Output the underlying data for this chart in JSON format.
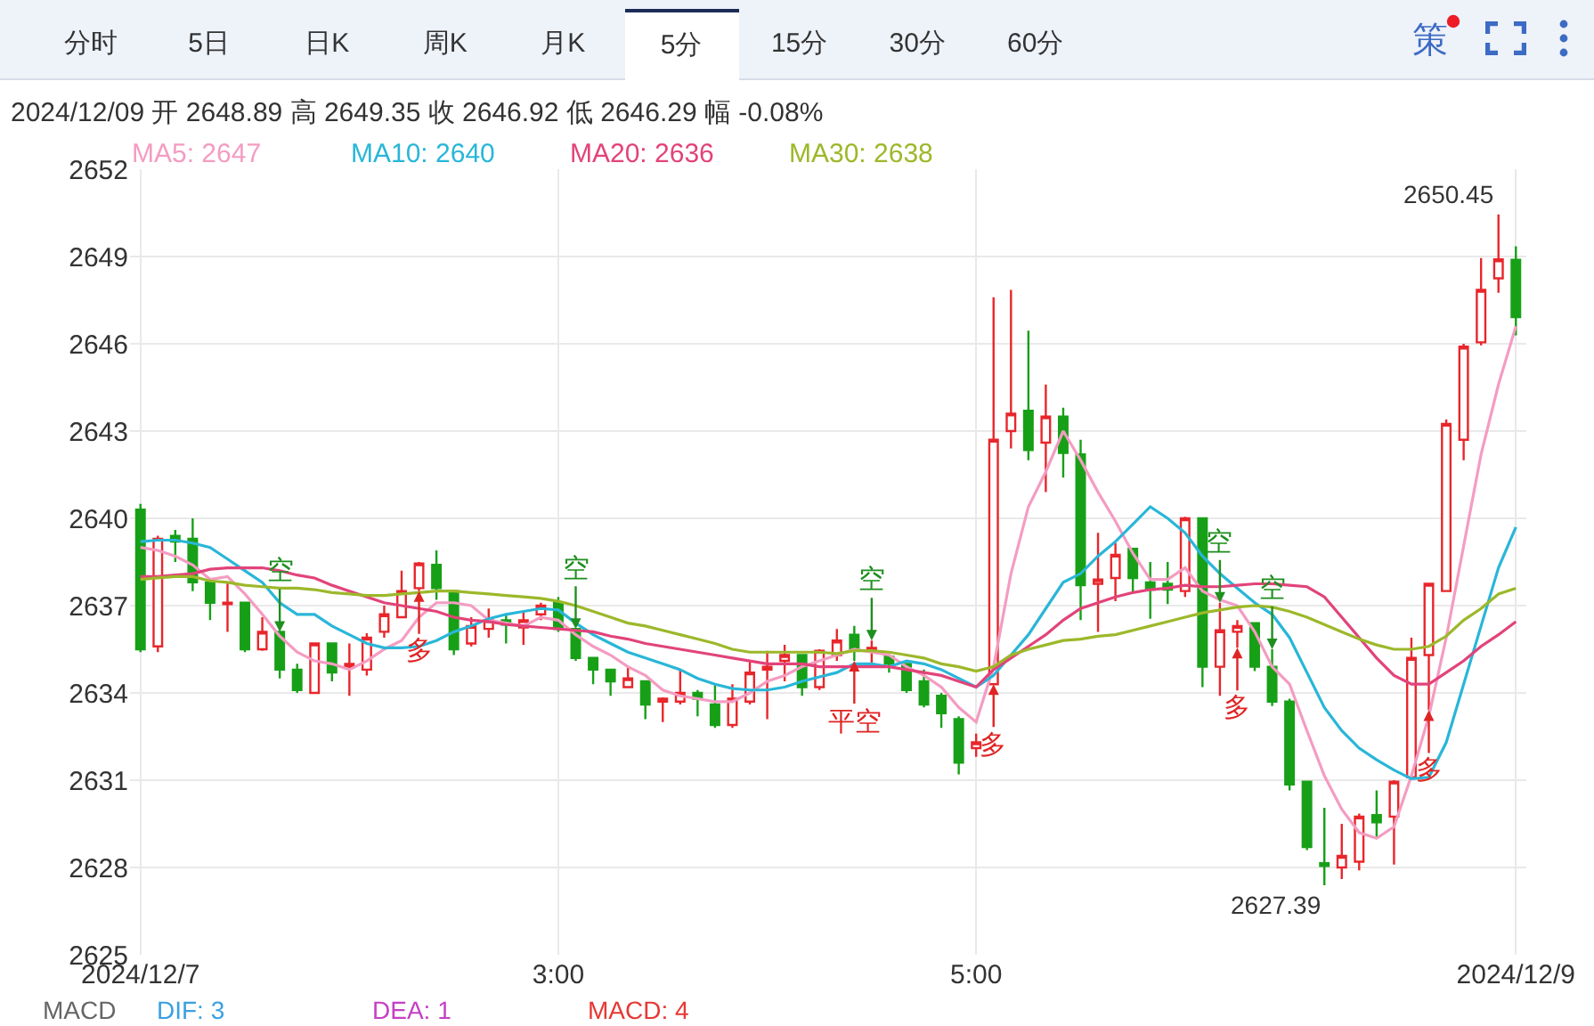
{
  "chart_data": [
    {
      "type": "other",
      "annotations": [
        "分时",
        "5日",
        "日K",
        "周K",
        "月K",
        "5分",
        "15分",
        "30分",
        "60分",
        "策"
      ]
    },
    {
      "type": "candlestick",
      "subtitle": "2024/12/09 开 2648.89 高 2649.35 收 2646.92 低 2646.29 幅 -0.08%",
      "x": [
        1,
        1.0833,
        1.1667,
        1.25,
        1.3333,
        1.4167,
        1.5,
        1.5833,
        1.6667,
        1.75,
        1.8333,
        1.9167,
        2,
        2.0833,
        2.1667,
        2.25,
        2.3333,
        2.4167,
        2.5,
        2.5833,
        2.6667,
        2.75,
        2.8333,
        2.9167,
        3,
        3.0833,
        3.1667,
        3.25,
        3.3333,
        3.4167,
        3.5,
        3.5833,
        3.6667,
        3.75,
        3.8333,
        3.9167,
        4,
        4.0833,
        4.1667,
        4.25,
        4.3333,
        4.4167,
        4.5,
        4.5833,
        4.6667,
        4.75,
        4.8333,
        4.9167,
        5,
        5.0833,
        5.1667,
        5.25,
        5.3333,
        5.4167,
        5.5,
        5.5833,
        5.6667,
        5.75,
        5.8333,
        5.9167,
        6,
        6.0833,
        6.1667,
        6.25,
        6.3333,
        6.4167,
        6.5,
        6.5833,
        6.6667,
        6.75,
        6.8333,
        6.9167,
        7,
        7.0833,
        7.1667,
        7.25,
        7.3333,
        7.4167,
        7.5,
        7.5833
      ],
      "xlim": [
        0.95,
        7.6333
      ],
      "xticks": [
        {
          "value": 1,
          "label": "2024/12/7"
        },
        {
          "value": 3,
          "label": "3:00"
        },
        {
          "value": 5,
          "label": "5:00"
        },
        {
          "value": 7.5833,
          "label": "2024/12/9"
        }
      ],
      "ylim": [
        2625,
        2652
      ],
      "yticks": [
        2625,
        2628,
        2631,
        2634,
        2637,
        2640,
        2643,
        2646,
        2649,
        2652
      ],
      "grid": true,
      "legend": "top left",
      "ohlc": [
        [
          2640.3,
          2640.5,
          2635.4,
          2635.5
        ],
        [
          2635.6,
          2639.4,
          2635.4,
          2639.3
        ],
        [
          2639.4,
          2639.6,
          2638.5,
          2639.2
        ],
        [
          2639.3,
          2640.0,
          2637.5,
          2637.8
        ],
        [
          2637.8,
          2637.8,
          2636.5,
          2637.1
        ],
        [
          2637.05,
          2637.8,
          2636.1,
          2637.1
        ],
        [
          2637.1,
          2637.1,
          2635.4,
          2635.5
        ],
        [
          2635.5,
          2636.6,
          2635.45,
          2636.1
        ],
        [
          2636.1,
          2636.1,
          2634.5,
          2634.8
        ],
        [
          2634.8,
          2635.0,
          2634.0,
          2634.1
        ],
        [
          2634.0,
          2635.7,
          2634.0,
          2635.7
        ],
        [
          2635.7,
          2635.7,
          2634.4,
          2634.7
        ],
        [
          2634.9,
          2635.7,
          2633.9,
          2635.0
        ],
        [
          2634.8,
          2636.05,
          2634.6,
          2635.9
        ],
        [
          2636.1,
          2637.0,
          2635.9,
          2636.7
        ],
        [
          2636.6,
          2638.2,
          2636.6,
          2637.5
        ],
        [
          2637.6,
          2638.5,
          2637.5,
          2638.45
        ],
        [
          2638.4,
          2638.9,
          2637.2,
          2637.6
        ],
        [
          2637.5,
          2637.5,
          2635.3,
          2635.5
        ],
        [
          2635.7,
          2636.6,
          2635.6,
          2636.3
        ],
        [
          2636.2,
          2636.9,
          2635.9,
          2636.5
        ],
        [
          2636.5,
          2636.7,
          2635.7,
          2636.35
        ],
        [
          2636.25,
          2636.8,
          2635.65,
          2636.5
        ],
        [
          2636.7,
          2637.1,
          2636.5,
          2637.0
        ],
        [
          2637.1,
          2637.3,
          2636.1,
          2636.2
        ],
        [
          2636.2,
          2636.2,
          2635.1,
          2635.2
        ],
        [
          2635.2,
          2635.2,
          2634.3,
          2634.8
        ],
        [
          2634.8,
          2634.8,
          2633.9,
          2634.4
        ],
        [
          2634.2,
          2634.9,
          2634.2,
          2634.5
        ],
        [
          2634.4,
          2634.4,
          2633.1,
          2633.6
        ],
        [
          2633.7,
          2633.85,
          2633.0,
          2633.8
        ],
        [
          2633.7,
          2634.8,
          2633.6,
          2634.0
        ],
        [
          2634.0,
          2634.1,
          2633.2,
          2633.8
        ],
        [
          2633.6,
          2634.3,
          2632.8,
          2632.9
        ],
        [
          2632.9,
          2634.3,
          2632.8,
          2633.8
        ],
        [
          2633.7,
          2635.1,
          2633.6,
          2634.7
        ],
        [
          2634.8,
          2635.45,
          2633.1,
          2634.9
        ],
        [
          2635.1,
          2635.65,
          2634.4,
          2635.3
        ],
        [
          2635.3,
          2635.3,
          2633.9,
          2634.2
        ],
        [
          2634.2,
          2635.5,
          2634.1,
          2635.45
        ],
        [
          2635.3,
          2636.2,
          2635.1,
          2635.8
        ],
        [
          2636.0,
          2636.3,
          2635.1,
          2635.5
        ],
        [
          2635.5,
          2635.8,
          2634.9,
          2635.55
        ],
        [
          2635.25,
          2635.3,
          2634.7,
          2635.0
        ],
        [
          2635.0,
          2635.0,
          2634.0,
          2634.1
        ],
        [
          2634.4,
          2634.8,
          2633.5,
          2633.6
        ],
        [
          2633.9,
          2634.0,
          2632.8,
          2633.3
        ],
        [
          2633.1,
          2633.2,
          2631.2,
          2631.6
        ],
        [
          2632.1,
          2632.6,
          2631.8,
          2632.3
        ],
        [
          2634.3,
          2647.6,
          2634.3,
          2642.7
        ],
        [
          2643.0,
          2647.85,
          2642.4,
          2643.6
        ],
        [
          2643.7,
          2646.45,
          2642.0,
          2642.35
        ],
        [
          2642.6,
          2644.6,
          2640.9,
          2643.5
        ],
        [
          2643.5,
          2643.8,
          2641.4,
          2642.25
        ],
        [
          2642.2,
          2642.7,
          2636.5,
          2637.7
        ],
        [
          2637.75,
          2639.5,
          2636.1,
          2637.9
        ],
        [
          2637.95,
          2639.15,
          2637.15,
          2638.75
        ],
        [
          2638.95,
          2638.95,
          2637.45,
          2637.95
        ],
        [
          2637.8,
          2638.5,
          2636.55,
          2637.55
        ],
        [
          2637.75,
          2638.5,
          2637.05,
          2637.55
        ],
        [
          2637.5,
          2640.05,
          2637.3,
          2640.0
        ],
        [
          2640.0,
          2640.0,
          2634.2,
          2634.9
        ],
        [
          2634.9,
          2637.1,
          2633.9,
          2636.15
        ],
        [
          2636.1,
          2636.5,
          2635.55,
          2636.3
        ],
        [
          2636.4,
          2636.4,
          2634.75,
          2634.9
        ],
        [
          2634.9,
          2635.5,
          2633.55,
          2633.7
        ],
        [
          2633.7,
          2633.8,
          2630.65,
          2630.85
        ],
        [
          2630.95,
          2630.95,
          2628.6,
          2628.7
        ],
        [
          2628.15,
          2630.05,
          2627.39,
          2628.05
        ],
        [
          2628.0,
          2629.5,
          2627.6,
          2628.4
        ],
        [
          2628.2,
          2629.85,
          2627.9,
          2629.75
        ],
        [
          2629.8,
          2630.65,
          2629.0,
          2629.55
        ],
        [
          2629.75,
          2631.0,
          2628.1,
          2630.95
        ],
        [
          2631.1,
          2635.9,
          2631.1,
          2635.2
        ],
        [
          2635.3,
          2637.75,
          2633.4,
          2637.75
        ],
        [
          2637.5,
          2643.4,
          2637.5,
          2643.25
        ],
        [
          2642.7,
          2646.0,
          2642.0,
          2645.9
        ],
        [
          2646.05,
          2648.95,
          2645.95,
          2647.85
        ],
        [
          2648.25,
          2650.45,
          2647.75,
          2648.9
        ],
        [
          2648.89,
          2649.35,
          2646.29,
          2646.92
        ]
      ],
      "series": [
        {
          "name": "MA5: 2647",
          "color": "#f49cc2",
          "type": "line",
          "values": [
            2639.0,
            2638.9,
            2638.7,
            2638.4,
            2637.9,
            2638.0,
            2637.4,
            2636.7,
            2635.95,
            2635.4,
            2635.1,
            2635.0,
            2634.8,
            2635.1,
            2635.5,
            2635.8,
            2636.6,
            2637.1,
            2637.1,
            2637.0,
            2636.5,
            2636.4,
            2636.3,
            2636.6,
            2636.5,
            2636.0,
            2635.6,
            2635.3,
            2634.9,
            2634.6,
            2634.1,
            2633.9,
            2633.8,
            2633.7,
            2633.7,
            2634.0,
            2634.4,
            2634.6,
            2634.9,
            2635.1,
            2635.3,
            2635.5,
            2635.4,
            2635.3,
            2634.9,
            2634.6,
            2634.2,
            2633.5,
            2633.0,
            2634.9,
            2638.1,
            2640.4,
            2641.6,
            2643.0,
            2642.0,
            2640.9,
            2639.9,
            2638.8,
            2637.9,
            2637.9,
            2638.3,
            2637.5,
            2637.2,
            2637.0,
            2636.1,
            2634.9,
            2634.3,
            2632.7,
            2631.15,
            2630.0,
            2629.2,
            2629.0,
            2629.4,
            2631.15,
            2633.2,
            2635.9,
            2639.05,
            2642.2,
            2644.6,
            2646.6
          ]
        },
        {
          "name": "MA10: 2640",
          "color": "#29b6d8",
          "type": "line",
          "values": [
            2639.2,
            2639.25,
            2639.25,
            2639.15,
            2639.0,
            2638.6,
            2638.2,
            2637.8,
            2637.1,
            2636.7,
            2636.7,
            2636.3,
            2636.0,
            2635.7,
            2635.55,
            2635.55,
            2635.6,
            2635.8,
            2636.1,
            2636.3,
            2636.55,
            2636.7,
            2636.8,
            2636.9,
            2636.85,
            2636.4,
            2636.0,
            2635.7,
            2635.4,
            2635.2,
            2635.0,
            2634.8,
            2634.5,
            2634.3,
            2634.15,
            2634.1,
            2634.1,
            2634.2,
            2634.4,
            2634.55,
            2634.7,
            2635.0,
            2635.0,
            2634.9,
            2635.1,
            2635.0,
            2634.8,
            2634.5,
            2634.2,
            2634.6,
            2635.3,
            2636.0,
            2636.9,
            2637.8,
            2638.1,
            2638.7,
            2639.2,
            2639.8,
            2640.4,
            2640.0,
            2639.5,
            2638.7,
            2638.1,
            2637.6,
            2637.1,
            2636.7,
            2635.9,
            2634.7,
            2633.5,
            2632.7,
            2632.1,
            2631.7,
            2631.35,
            2631.05,
            2631.1,
            2632.3,
            2634.3,
            2636.3,
            2638.3,
            2639.7
          ]
        },
        {
          "name": "MA20: 2636",
          "color": "#e2437a",
          "type": "line",
          "values": [
            2638.0,
            2638.0,
            2638.05,
            2638.1,
            2638.25,
            2638.3,
            2638.3,
            2638.3,
            2638.2,
            2638.05,
            2637.95,
            2637.7,
            2637.5,
            2637.3,
            2637.1,
            2637.0,
            2636.9,
            2636.8,
            2636.6,
            2636.5,
            2636.45,
            2636.35,
            2636.3,
            2636.25,
            2636.2,
            2636.15,
            2636.1,
            2635.95,
            2635.85,
            2635.7,
            2635.6,
            2635.5,
            2635.4,
            2635.3,
            2635.2,
            2635.1,
            2635.0,
            2635.0,
            2635.0,
            2634.9,
            2634.9,
            2634.9,
            2634.9,
            2634.9,
            2634.8,
            2634.7,
            2634.6,
            2634.4,
            2634.2,
            2634.8,
            2635.2,
            2635.6,
            2636.0,
            2636.5,
            2636.9,
            2637.1,
            2637.3,
            2637.45,
            2637.55,
            2637.6,
            2637.7,
            2637.65,
            2637.65,
            2637.7,
            2637.75,
            2637.75,
            2637.7,
            2637.65,
            2637.3,
            2636.6,
            2635.9,
            2635.2,
            2634.6,
            2634.3,
            2634.3,
            2634.7,
            2635.1,
            2635.6,
            2636.0,
            2636.45
          ]
        },
        {
          "name": "MA30: 2638",
          "color": "#9cb82a",
          "type": "line",
          "values": [
            2637.9,
            2637.95,
            2638.0,
            2638.0,
            2637.85,
            2637.8,
            2637.7,
            2637.65,
            2637.6,
            2637.6,
            2637.55,
            2637.45,
            2637.4,
            2637.35,
            2637.35,
            2637.4,
            2637.45,
            2637.5,
            2637.5,
            2637.45,
            2637.4,
            2637.35,
            2637.3,
            2637.25,
            2637.15,
            2637.0,
            2636.8,
            2636.6,
            2636.4,
            2636.3,
            2636.15,
            2636.0,
            2635.85,
            2635.7,
            2635.5,
            2635.4,
            2635.4,
            2635.4,
            2635.4,
            2635.4,
            2635.35,
            2635.45,
            2635.45,
            2635.4,
            2635.3,
            2635.2,
            2635.0,
            2634.9,
            2634.75,
            2634.9,
            2635.3,
            2635.5,
            2635.65,
            2635.8,
            2635.85,
            2635.95,
            2636.0,
            2636.15,
            2636.3,
            2636.45,
            2636.6,
            2636.75,
            2636.85,
            2636.95,
            2637.0,
            2636.95,
            2636.8,
            2636.6,
            2636.35,
            2636.1,
            2635.85,
            2635.65,
            2635.5,
            2635.5,
            2635.6,
            2635.95,
            2636.5,
            2636.9,
            2637.4,
            2637.6
          ]
        }
      ],
      "annotations": [
        {
          "text": "空",
          "x": 1.6667,
          "y": 2636.1
        },
        {
          "text": "多",
          "x": 2.3333,
          "y": 2637.5
        },
        {
          "text": "空",
          "x": 3.0833,
          "y": 2636.2
        },
        {
          "text": "平空",
          "x": 4.4167,
          "y": 2635.1
        },
        {
          "text": "空",
          "x": 4.5,
          "y": 2635.8
        },
        {
          "text": "多",
          "x": 5.0833,
          "y": 2634.3
        },
        {
          "text": "空",
          "x": 6.1667,
          "y": 2637.1
        },
        {
          "text": "多",
          "x": 6.25,
          "y": 2635.55
        },
        {
          "text": "空",
          "x": 6.4167,
          "y": 2635.5
        },
        {
          "text": "多",
          "x": 7.1667,
          "y": 2633.4
        },
        {
          "text": "2650.45",
          "x": 7.5,
          "y": 2650.45
        },
        {
          "text": "2627.39",
          "x": 6.6667,
          "y": 2627.39
        }
      ]
    },
    {
      "type": "other",
      "annotations": [
        "MACD",
        "DIF: 3",
        "DEA: 1",
        "MACD: 4"
      ]
    }
  ]
}
